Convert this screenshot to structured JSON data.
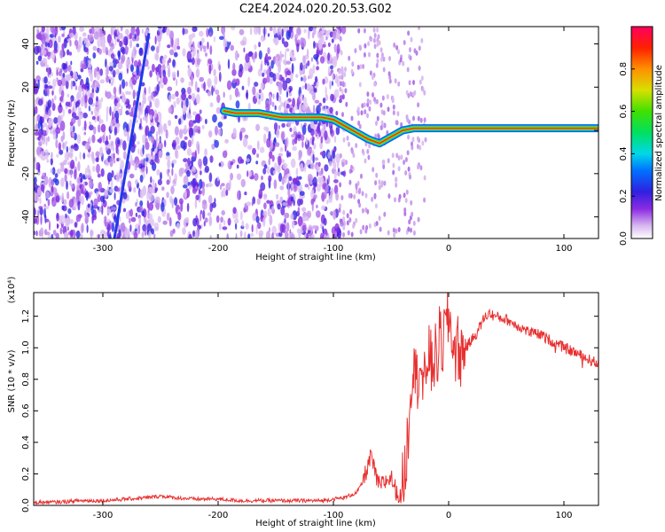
{
  "title": "C2E4.2024.020.20.53.G02",
  "chart_data": [
    {
      "type": "heatmap",
      "xlabel": "Height of straight line (km)",
      "ylabel": "Frequency (Hz)",
      "xlim": [
        -360,
        130
      ],
      "ylim": [
        -50,
        48
      ],
      "xticks": [
        -300,
        -200,
        -100,
        0,
        100
      ],
      "xtick_labels": [
        "-300",
        "-200",
        "-100",
        "0",
        "100"
      ],
      "yticks": [
        -40,
        -20,
        0,
        20,
        40
      ],
      "ytick_labels": [
        "-40",
        "-20",
        "0",
        "20",
        "40"
      ],
      "colorbar": {
        "label": "Normalized spectral amplitude",
        "range": [
          0,
          1
        ],
        "ticks": [
          0.0,
          0.2,
          0.4,
          0.6,
          0.8
        ],
        "tick_labels": [
          "0.0",
          "0.2",
          "0.4",
          "0.6",
          "0.8"
        ],
        "colormap": "white-violet-blue-cyan-green-yellow-red"
      },
      "signal_ridge": {
        "x": [
          -195,
          -185,
          -175,
          -165,
          -155,
          -145,
          -120,
          -110,
          -100,
          -90,
          -80,
          -70,
          -60,
          -50,
          -40,
          -30,
          -20,
          -10,
          0,
          20,
          40,
          60,
          80,
          100,
          120,
          130
        ],
        "y": [
          9,
          8,
          8,
          8,
          7,
          6,
          6,
          6,
          5,
          2,
          -1,
          -4,
          -6,
          -3,
          0,
          1,
          1,
          1,
          1,
          1,
          1,
          1,
          1,
          1,
          1,
          1
        ]
      },
      "diagonal_streak": {
        "x": [
          -290,
          -260
        ],
        "y": [
          -50,
          45
        ]
      }
    },
    {
      "type": "line",
      "xlabel": "Height of straight line (km)",
      "ylabel": "SNR (10 * v/v)",
      "y_multiplier": "(x10⁴)",
      "xlim": [
        -360,
        130
      ],
      "ylim": [
        0,
        1.35
      ],
      "xticks": [
        -300,
        -200,
        -100,
        0,
        100
      ],
      "xtick_labels": [
        "-300",
        "-200",
        "-100",
        "0",
        "100"
      ],
      "yticks": [
        0.0,
        0.2,
        0.4,
        0.6,
        0.8,
        1.0,
        1.2
      ],
      "ytick_labels": [
        "0.0",
        "0.2",
        "0.4",
        "0.6",
        "0.8",
        "1.0",
        "1.2"
      ],
      "line_color": "#e83030",
      "series": [
        {
          "x": [
            -360,
            -340,
            -320,
            -300,
            -280,
            -260,
            -250,
            -240,
            -220,
            -200,
            -180,
            -160,
            -140,
            -120,
            -110,
            -100,
            -90,
            -80,
            -75,
            -70,
            -67,
            -64,
            -60,
            -55,
            -50,
            -45,
            -42,
            -40,
            -37,
            -35,
            -32,
            -30,
            -28,
            -25,
            -22,
            -20,
            -18,
            -15,
            -12,
            -10,
            -8,
            -5,
            -3,
            0,
            3,
            5,
            8,
            10,
            15,
            20,
            25,
            30,
            35,
            40,
            50,
            60,
            70,
            80,
            90,
            100,
            110,
            120,
            130
          ],
          "y": [
            0.02,
            0.02,
            0.03,
            0.03,
            0.04,
            0.05,
            0.06,
            0.05,
            0.04,
            0.04,
            0.03,
            0.03,
            0.03,
            0.03,
            0.03,
            0.04,
            0.05,
            0.08,
            0.14,
            0.25,
            0.32,
            0.2,
            0.12,
            0.15,
            0.18,
            0.08,
            0.05,
            0.12,
            0.28,
            0.5,
            0.85,
            1.0,
            0.75,
            0.95,
            0.7,
            0.82,
            1.0,
            0.88,
            0.95,
            0.92,
            1.05,
            1.02,
            1.12,
            1.2,
            1.08,
            0.98,
            1.0,
            0.95,
            1.0,
            1.05,
            1.1,
            1.18,
            1.22,
            1.2,
            1.18,
            1.14,
            1.1,
            1.08,
            1.04,
            1.0,
            0.97,
            0.93,
            0.9
          ]
        }
      ]
    }
  ]
}
